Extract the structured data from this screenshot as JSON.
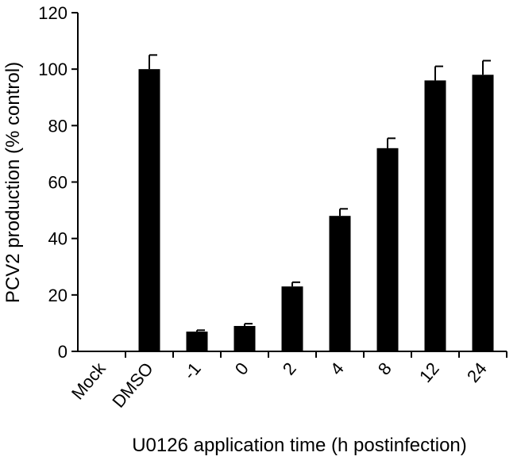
{
  "chart_data": {
    "type": "bar",
    "title": "",
    "xlabel": "U0126 application time (h postinfection)",
    "ylabel": "PCV2 production (% control)",
    "ylim": [
      0,
      120
    ],
    "yticks": [
      0,
      20,
      40,
      60,
      80,
      100,
      120
    ],
    "categories": [
      "Mock",
      "DMSO",
      "-1",
      "0",
      "2",
      "4",
      "8",
      "12",
      "24"
    ],
    "values": [
      0,
      100,
      7,
      9,
      23,
      48,
      72,
      96,
      98
    ],
    "errors": [
      0,
      5,
      0.5,
      0.8,
      1.5,
      2.5,
      3.5,
      5,
      5
    ],
    "grid": false,
    "bar_color": "#000000"
  }
}
